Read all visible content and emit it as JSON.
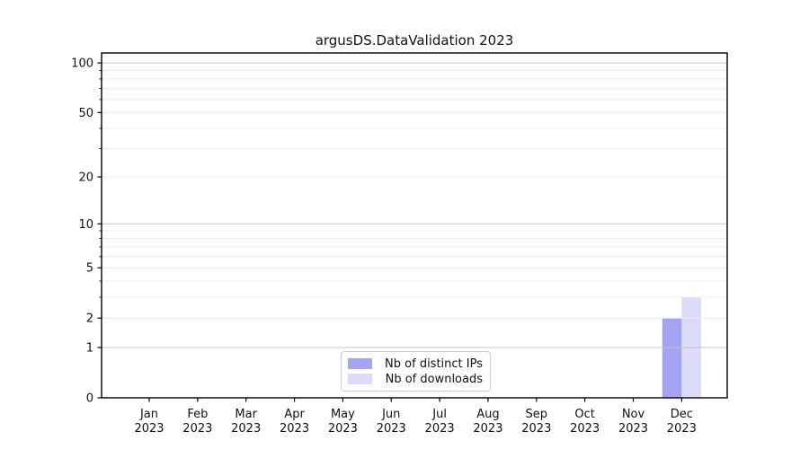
{
  "title": "argusDS.DataValidation 2023",
  "chart_data": {
    "type": "bar",
    "title": "argusDS.DataValidation 2023",
    "categories": [
      {
        "month": "Jan",
        "year": "2023"
      },
      {
        "month": "Feb",
        "year": "2023"
      },
      {
        "month": "Mar",
        "year": "2023"
      },
      {
        "month": "Apr",
        "year": "2023"
      },
      {
        "month": "May",
        "year": "2023"
      },
      {
        "month": "Jun",
        "year": "2023"
      },
      {
        "month": "Jul",
        "year": "2023"
      },
      {
        "month": "Aug",
        "year": "2023"
      },
      {
        "month": "Sep",
        "year": "2023"
      },
      {
        "month": "Oct",
        "year": "2023"
      },
      {
        "month": "Nov",
        "year": "2023"
      },
      {
        "month": "Dec",
        "year": "2023"
      }
    ],
    "series": [
      {
        "name": "Nb of distinct IPs",
        "color": "#a4a4f2",
        "values": [
          0,
          0,
          0,
          0,
          0,
          0,
          0,
          0,
          0,
          0,
          0,
          2
        ]
      },
      {
        "name": "Nb of downloads",
        "color": "#dcdcf8",
        "values": [
          0,
          0,
          0,
          0,
          0,
          0,
          0,
          0,
          0,
          0,
          0,
          3
        ]
      }
    ],
    "xlabel": "",
    "ylabel": "",
    "y_scale": "symlog (y ~ log(1+v))",
    "ylim": [
      0,
      120
    ],
    "y_ticks": [
      0,
      1,
      2,
      5,
      10,
      20,
      50,
      100
    ],
    "y_minor_ticks": [
      3,
      4,
      6,
      7,
      8,
      9,
      30,
      40,
      60,
      70,
      80,
      90
    ],
    "y_major_gridlines": [
      1,
      10,
      100
    ],
    "grid": "horizontal, major and minor",
    "legend_position": "lower center"
  }
}
